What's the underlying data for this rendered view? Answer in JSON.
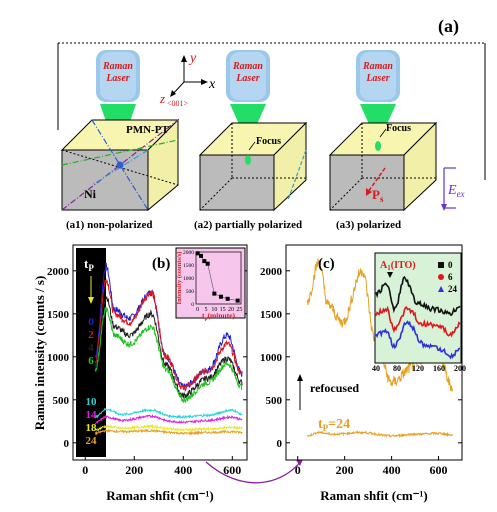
{
  "panel_a": {
    "label": "(a)",
    "laser_text": [
      "Raman",
      "Laser"
    ],
    "axis_y": "y",
    "axis_x": "x",
    "axis_z": "z",
    "axis_z_sub": "<001>",
    "material": "PMN-PT",
    "electrode": "Ni",
    "focus": "Focus",
    "ps": "P",
    "ps_sub": "s",
    "eex": "E",
    "eex_sub": "ex",
    "captions": [
      "(a1) non-polarized",
      "(a2) partially polarized",
      "(a3) polarized"
    ]
  },
  "chart_data": [
    {
      "type": "line",
      "panel_label": "(b)",
      "xlabel": "Raman shfit (cm⁻¹)",
      "ylabel": "Raman intensity (counts / s)",
      "xlim": [
        -50,
        660
      ],
      "ylim": [
        -200,
        2300
      ],
      "xticks": [
        0,
        200,
        400,
        600
      ],
      "yticks": [
        0,
        500,
        1000,
        1500,
        2000
      ],
      "legend_title": "t",
      "legend_title_sub": "P",
      "series": [
        {
          "name": "0",
          "color": "#1f1fd0",
          "scale": 1.0,
          "offset": 0,
          "key": [
            [
              40,
              1000
            ],
            [
              85,
              2050
            ],
            [
              120,
              1550
            ],
            [
              180,
              1450
            ],
            [
              270,
              1750
            ],
            [
              330,
              1000
            ],
            [
              400,
              650
            ],
            [
              500,
              850
            ],
            [
              580,
              1250
            ],
            [
              640,
              800
            ]
          ]
        },
        {
          "name": "2",
          "color": "#e0161e",
          "scale": 0.96,
          "offset": 0,
          "key": [
            [
              40,
              950
            ],
            [
              85,
              1900
            ],
            [
              120,
              1500
            ],
            [
              180,
              1400
            ],
            [
              270,
              1750
            ],
            [
              330,
              1000
            ],
            [
              400,
              640
            ],
            [
              500,
              840
            ],
            [
              580,
              1150
            ],
            [
              640,
              800
            ]
          ]
        },
        {
          "name": "4",
          "color": "#222222",
          "scale": 0.9,
          "offset": 0,
          "key": [
            [
              40,
              900
            ],
            [
              85,
              1700
            ],
            [
              120,
              1350
            ],
            [
              180,
              1250
            ],
            [
              270,
              1500
            ],
            [
              330,
              900
            ],
            [
              400,
              550
            ],
            [
              500,
              750
            ],
            [
              580,
              980
            ],
            [
              640,
              700
            ]
          ]
        },
        {
          "name": "6",
          "color": "#21c021",
          "scale": 0.85,
          "offset": 0,
          "key": [
            [
              40,
              850
            ],
            [
              85,
              1550
            ],
            [
              120,
              1250
            ],
            [
              180,
              1150
            ],
            [
              270,
              1350
            ],
            [
              330,
              850
            ],
            [
              400,
              500
            ],
            [
              500,
              700
            ],
            [
              580,
              920
            ],
            [
              640,
              650
            ]
          ]
        },
        {
          "name": "10",
          "color": "#20d8d8",
          "scale": 1.0,
          "offset": 0,
          "key": [
            [
              40,
              300
            ],
            [
              85,
              390
            ],
            [
              150,
              330
            ],
            [
              270,
              380
            ],
            [
              350,
              310
            ],
            [
              400,
              300
            ],
            [
              500,
              320
            ],
            [
              600,
              380
            ],
            [
              640,
              330
            ]
          ]
        },
        {
          "name": "14",
          "color": "#e020e0",
          "scale": 1.0,
          "offset": 0,
          "key": [
            [
              40,
              230
            ],
            [
              85,
              300
            ],
            [
              150,
              260
            ],
            [
              270,
              310
            ],
            [
              350,
              250
            ],
            [
              400,
              240
            ],
            [
              500,
              260
            ],
            [
              600,
              300
            ],
            [
              640,
              270
            ]
          ]
        },
        {
          "name": "18",
          "color": "#e8e822",
          "scale": 1.0,
          "offset": 0,
          "key": [
            [
              40,
              150
            ],
            [
              85,
              190
            ],
            [
              150,
              170
            ],
            [
              270,
              190
            ],
            [
              350,
              160
            ],
            [
              400,
              150
            ],
            [
              500,
              160
            ],
            [
              600,
              180
            ],
            [
              640,
              170
            ]
          ]
        },
        {
          "name": "24",
          "color": "#e8a020",
          "scale": 1.0,
          "offset": 0,
          "key": [
            [
              40,
              110
            ],
            [
              85,
              140
            ],
            [
              150,
              130
            ],
            [
              270,
              140
            ],
            [
              350,
              120
            ],
            [
              400,
              110
            ],
            [
              500,
              120
            ],
            [
              600,
              130
            ],
            [
              640,
              120
            ]
          ]
        }
      ],
      "inset": {
        "type": "scatter",
        "xlabel": "t",
        "xlabel_sub": "p",
        "xlabel_tail": "(minute)",
        "ylabel": "Intensity (counts/s)",
        "xlim": [
          -1,
          26
        ],
        "ylim": [
          0,
          2000
        ],
        "xticks": [
          0,
          5,
          10,
          15,
          20,
          25
        ],
        "yticks": [
          0,
          500,
          1000,
          1500,
          2000
        ],
        "x": [
          0,
          2,
          4,
          6,
          10,
          14,
          18,
          24
        ],
        "y": [
          1950,
          1850,
          1650,
          1550,
          400,
          280,
          200,
          130
        ]
      }
    },
    {
      "type": "line",
      "panel_label": "(c)",
      "xlabel": "Raman shfit (cm⁻¹)",
      "xlim": [
        -50,
        700
      ],
      "ylim": [
        -200,
        2300
      ],
      "xticks": [
        0,
        200,
        400,
        600
      ],
      "yticks": [
        0,
        500,
        1000,
        1500,
        2000
      ],
      "annotation_refocused": "refocused",
      "annotation_tp": "t",
      "annotation_tp_sub": "P",
      "annotation_tp_tail": "=24",
      "series": [
        {
          "name": "refocused",
          "color": "#e8a020",
          "key": [
            [
              40,
              1650
            ],
            [
              90,
              2100
            ],
            [
              130,
              1600
            ],
            [
              190,
              1400
            ],
            [
              275,
              2000
            ],
            [
              330,
              1200
            ],
            [
              400,
              700
            ],
            [
              500,
              900
            ],
            [
              580,
              1200
            ],
            [
              660,
              650
            ]
          ]
        },
        {
          "name": "t_P=24",
          "color": "#e8a020",
          "key": [
            [
              40,
              80
            ],
            [
              90,
              120
            ],
            [
              150,
              100
            ],
            [
              270,
              120
            ],
            [
              400,
              80
            ],
            [
              500,
              100
            ],
            [
              600,
              110
            ],
            [
              660,
              90
            ]
          ]
        }
      ],
      "inset": {
        "type": "line",
        "label": "A",
        "label_sub": "1",
        "label_tail": "(ITO)",
        "xlim": [
          40,
          200
        ],
        "xticks": [
          40,
          80,
          120,
          160,
          200
        ],
        "series": [
          {
            "name": "0",
            "color": "#111111",
            "marker": "square"
          },
          {
            "name": "6",
            "color": "#e0161e",
            "marker": "circle"
          },
          {
            "name": "24",
            "color": "#3030d8",
            "marker": "triangle"
          }
        ]
      }
    }
  ]
}
